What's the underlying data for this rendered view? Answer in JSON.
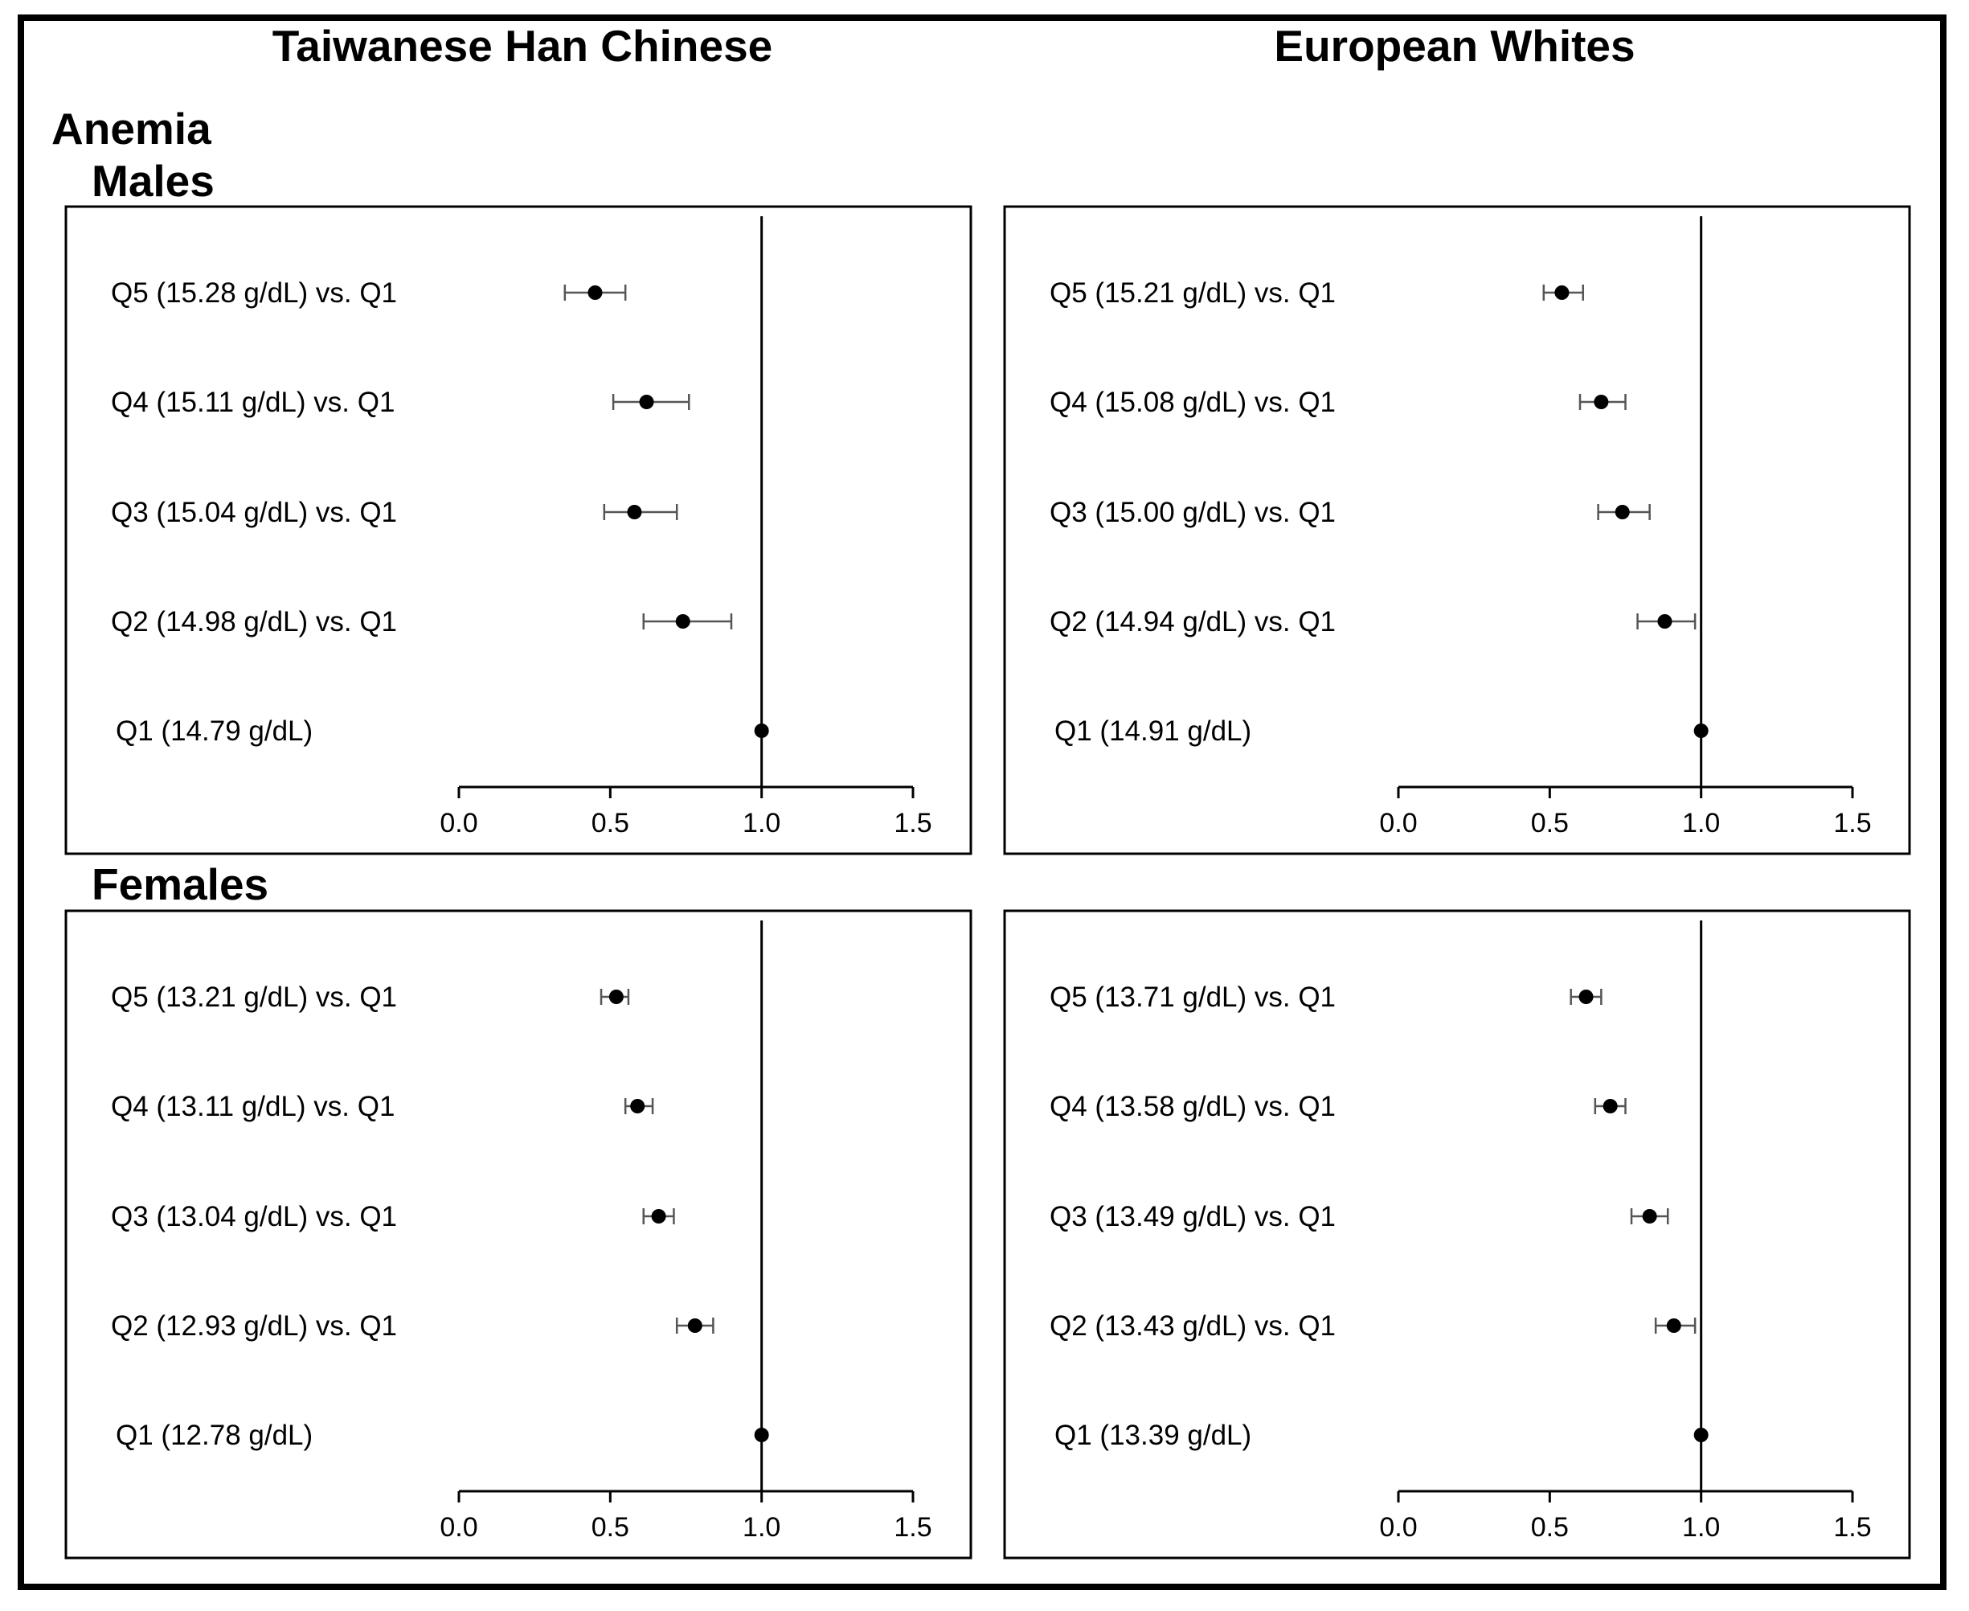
{
  "headings": {
    "col_left": "Taiwanese Han Chinese",
    "col_right": "European Whites",
    "row_top_group": "Anemia",
    "row_top_sub": "Males",
    "row_bottom": "Females"
  },
  "style": {
    "point_color": "#000000",
    "ci_color": "#555555",
    "line_color": "#000000"
  },
  "chart_data": [
    {
      "type": "forest",
      "panel": "males-taiwanese",
      "xlim": [
        0,
        1.5
      ],
      "xticks": [
        "0.0",
        "0.5",
        "1.0",
        "1.5"
      ],
      "reference_line": 1.0,
      "rows": [
        {
          "label": "Q5 (15.28 g/dL) vs. Q1",
          "value": 0.45,
          "lo": 0.35,
          "hi": 0.55
        },
        {
          "label": "Q4 (15.11 g/dL) vs. Q1",
          "value": 0.62,
          "lo": 0.51,
          "hi": 0.76
        },
        {
          "label": "Q3 (15.04 g/dL) vs. Q1",
          "value": 0.58,
          "lo": 0.48,
          "hi": 0.72
        },
        {
          "label": "Q2 (14.98 g/dL) vs. Q1",
          "value": 0.74,
          "lo": 0.61,
          "hi": 0.9
        },
        {
          "label": "Q1 (14.79 g/dL)",
          "value": 1.0,
          "lo": 1.0,
          "hi": 1.0
        }
      ]
    },
    {
      "type": "forest",
      "panel": "males-european",
      "xlim": [
        0,
        1.5
      ],
      "xticks": [
        "0.0",
        "0.5",
        "1.0",
        "1.5"
      ],
      "reference_line": 1.0,
      "rows": [
        {
          "label": "Q5 (15.21 g/dL) vs. Q1",
          "value": 0.54,
          "lo": 0.48,
          "hi": 0.61
        },
        {
          "label": "Q4 (15.08 g/dL) vs. Q1",
          "value": 0.67,
          "lo": 0.6,
          "hi": 0.75
        },
        {
          "label": "Q3 (15.00 g/dL) vs. Q1",
          "value": 0.74,
          "lo": 0.66,
          "hi": 0.83
        },
        {
          "label": "Q2 (14.94 g/dL) vs. Q1",
          "value": 0.88,
          "lo": 0.79,
          "hi": 0.98
        },
        {
          "label": "Q1 (14.91 g/dL)",
          "value": 1.0,
          "lo": 1.0,
          "hi": 1.0
        }
      ]
    },
    {
      "type": "forest",
      "panel": "females-taiwanese",
      "xlim": [
        0,
        1.5
      ],
      "xticks": [
        "0.0",
        "0.5",
        "1.0",
        "1.5"
      ],
      "reference_line": 1.0,
      "rows": [
        {
          "label": "Q5 (13.21 g/dL) vs. Q1",
          "value": 0.52,
          "lo": 0.47,
          "hi": 0.56
        },
        {
          "label": "Q4 (13.11 g/dL) vs. Q1",
          "value": 0.59,
          "lo": 0.55,
          "hi": 0.64
        },
        {
          "label": "Q3 (13.04 g/dL) vs. Q1",
          "value": 0.66,
          "lo": 0.61,
          "hi": 0.71
        },
        {
          "label": "Q2 (12.93 g/dL) vs. Q1",
          "value": 0.78,
          "lo": 0.72,
          "hi": 0.84
        },
        {
          "label": "Q1 (12.78 g/dL)",
          "value": 1.0,
          "lo": 1.0,
          "hi": 1.0
        }
      ]
    },
    {
      "type": "forest",
      "panel": "females-european",
      "xlim": [
        0,
        1.5
      ],
      "xticks": [
        "0.0",
        "0.5",
        "1.0",
        "1.5"
      ],
      "reference_line": 1.0,
      "rows": [
        {
          "label": "Q5 (13.71 g/dL) vs. Q1",
          "value": 0.62,
          "lo": 0.57,
          "hi": 0.67
        },
        {
          "label": "Q4 (13.58 g/dL) vs. Q1",
          "value": 0.7,
          "lo": 0.65,
          "hi": 0.75
        },
        {
          "label": "Q3 (13.49 g/dL) vs. Q1",
          "value": 0.83,
          "lo": 0.77,
          "hi": 0.89
        },
        {
          "label": "Q2 (13.43 g/dL) vs. Q1",
          "value": 0.91,
          "lo": 0.85,
          "hi": 0.98
        },
        {
          "label": "Q1 (13.39 g/dL)",
          "value": 1.0,
          "lo": 1.0,
          "hi": 1.0
        }
      ]
    }
  ]
}
